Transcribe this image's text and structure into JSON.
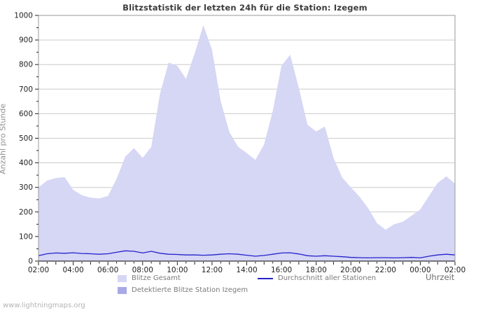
{
  "title": "Blitzstatistik der letzten 24h für die Station: Izegem",
  "watermark": "www.lightningmaps.org",
  "axes": {
    "y_label": "Anzahl pro Stunde",
    "x_label": "Uhrzeit"
  },
  "legend": [
    {
      "label": "Blitze Gesamt",
      "type": "area",
      "color": "#d6d6f5"
    },
    {
      "label": "Detektierte Blitze Station Izegem",
      "type": "area",
      "color": "#a9a9e6"
    },
    {
      "label": "Durchschnitt aller Stationen",
      "type": "line",
      "color": "#2323cc"
    }
  ],
  "colors": {
    "area_total": "#d6d6f5",
    "area_detected": "#a9a9e6",
    "avg_line": "#2323cc",
    "grid": "#cccccc",
    "plot_border": "#9a9a9a",
    "axis": "#333333",
    "tick": "#222222",
    "tick_label": "#222222"
  },
  "chart_data": {
    "type": "area",
    "title": "Blitzstatistik der letzten 24h für die Station: Izegem",
    "xlabel": "Uhrzeit",
    "ylabel": "Anzahl pro Stunde",
    "ylim": [
      0,
      1000
    ],
    "y_tick_step": 100,
    "grid": true,
    "legend_position": "bottom",
    "x": [
      "02:00",
      "02:30",
      "03:00",
      "03:30",
      "04:00",
      "04:30",
      "05:00",
      "05:30",
      "06:00",
      "06:30",
      "07:00",
      "07:30",
      "08:00",
      "08:30",
      "09:00",
      "09:30",
      "10:00",
      "10:30",
      "11:00",
      "11:30",
      "12:00",
      "12:30",
      "13:00",
      "13:30",
      "14:00",
      "14:30",
      "15:00",
      "15:30",
      "16:00",
      "16:30",
      "17:00",
      "17:30",
      "18:00",
      "18:30",
      "19:00",
      "19:30",
      "20:00",
      "20:30",
      "21:00",
      "21:30",
      "22:00",
      "22:30",
      "23:00",
      "23:30",
      "00:00",
      "00:30",
      "01:00",
      "01:30",
      "02:00"
    ],
    "x_tick_labels": [
      "02:00",
      "04:00",
      "06:00",
      "08:00",
      "10:00",
      "12:00",
      "14:00",
      "16:00",
      "18:00",
      "20:00",
      "22:00",
      "00:00",
      "02:00"
    ],
    "series": [
      {
        "name": "Blitze Gesamt",
        "style": "area",
        "values": [
          300,
          328,
          338,
          342,
          290,
          268,
          258,
          255,
          265,
          335,
          425,
          460,
          420,
          465,
          680,
          808,
          795,
          742,
          845,
          960,
          860,
          650,
          525,
          465,
          440,
          412,
          475,
          612,
          795,
          840,
          705,
          555,
          528,
          548,
          420,
          340,
          300,
          262,
          215,
          155,
          128,
          150,
          160,
          185,
          210,
          265,
          318,
          345,
          315
        ]
      },
      {
        "name": "Detektierte Blitze Station Izegem",
        "style": "area",
        "values": [
          0,
          0,
          0,
          0,
          0,
          0,
          0,
          0,
          0,
          0,
          0,
          0,
          0,
          0,
          0,
          0,
          0,
          0,
          0,
          0,
          0,
          0,
          0,
          0,
          0,
          0,
          0,
          0,
          0,
          0,
          0,
          0,
          0,
          0,
          0,
          0,
          0,
          0,
          0,
          0,
          0,
          0,
          0,
          0,
          0,
          0,
          0,
          0,
          0
        ]
      },
      {
        "name": "Durchschnitt aller Stationen",
        "style": "line",
        "values": [
          22,
          30,
          33,
          32,
          34,
          31,
          30,
          28,
          30,
          36,
          42,
          40,
          33,
          40,
          32,
          28,
          27,
          25,
          25,
          24,
          25,
          28,
          30,
          28,
          24,
          20,
          23,
          28,
          33,
          34,
          29,
          22,
          20,
          22,
          20,
          18,
          15,
          14,
          13,
          14,
          14,
          13,
          14,
          15,
          13,
          20,
          25,
          28,
          25
        ]
      }
    ]
  }
}
